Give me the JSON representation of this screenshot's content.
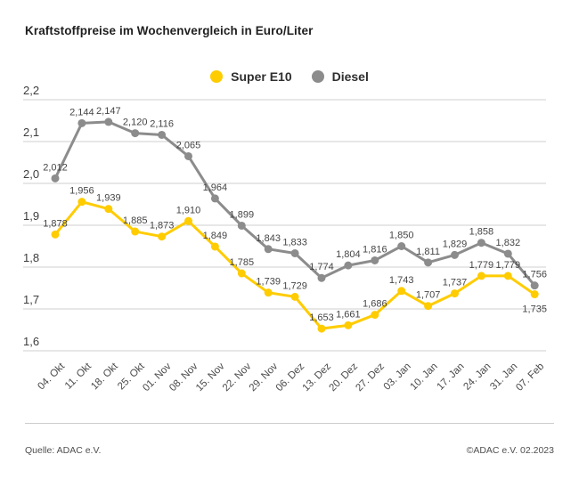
{
  "chart_data": {
    "type": "line",
    "title": "Kraftstoffpreise im Wochenvergleich in Euro/Liter",
    "categories": [
      "04. Okt",
      "11. Okt",
      "18. Okt",
      "25. Okt",
      "01. Nov",
      "08. Nov",
      "15. Nov",
      "22. Nov",
      "29. Nov",
      "06. Dez",
      "13. Dez",
      "20. Dez",
      "27. Dez",
      "03. Jan",
      "10. Jan",
      "17. Jan",
      "24. Jan",
      "31. Jan",
      "07. Feb"
    ],
    "series": [
      {
        "name": "Super E10",
        "color": "#FFCC00",
        "values": [
          1.878,
          1.956,
          1.939,
          1.885,
          1.873,
          1.91,
          1.849,
          1.785,
          1.739,
          1.729,
          1.653,
          1.661,
          1.686,
          1.743,
          1.707,
          1.737,
          1.779,
          1.779,
          1.735
        ],
        "label_below_idx": [
          18
        ]
      },
      {
        "name": "Diesel",
        "color": "#8C8C8C",
        "values": [
          2.012,
          2.144,
          2.147,
          2.12,
          2.116,
          2.065,
          1.964,
          1.899,
          1.843,
          1.833,
          1.774,
          1.804,
          1.816,
          1.85,
          1.811,
          1.829,
          1.858,
          1.832,
          1.756
        ],
        "label_below_idx": []
      }
    ],
    "ylim": [
      1.6,
      2.2
    ],
    "yticks": [
      1.6,
      1.7,
      1.8,
      1.9,
      2.0,
      2.1,
      2.2
    ],
    "grid": true,
    "gridline_color": "#cfcfcf",
    "legend_position": "top-center",
    "x_label_rotation_deg": 45,
    "decimal_separator": ",",
    "value_labels": true,
    "xlabel": "",
    "ylabel": ""
  },
  "footer": {
    "source": "Quelle: ADAC e.V.",
    "copyright": "©ADAC e.V. 02.2023"
  }
}
